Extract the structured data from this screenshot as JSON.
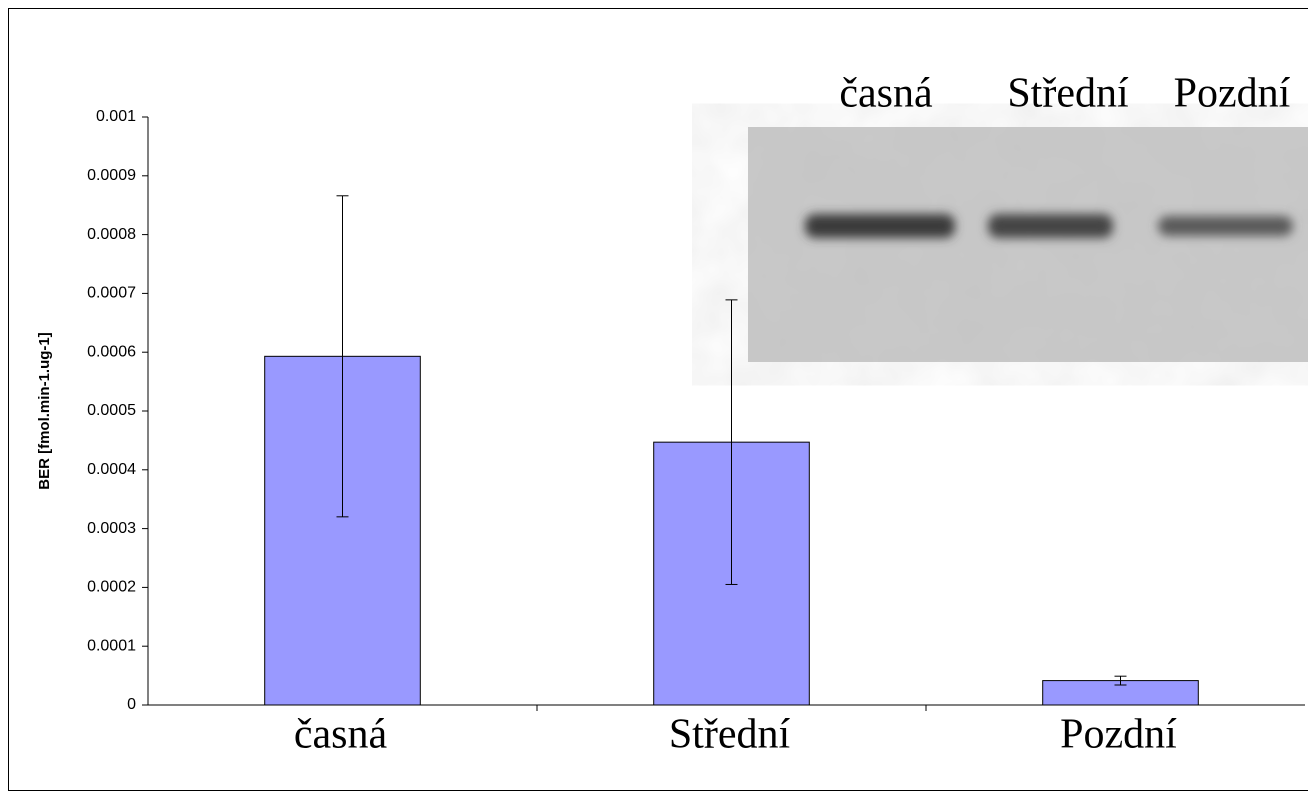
{
  "chart_data": {
    "type": "bar",
    "y_label": "BER [fmol.min-1.ug-1]",
    "categories": [
      "časná",
      "Střední",
      "Pozdní"
    ],
    "values": [
      0.000593,
      0.000447,
      4.15e-05
    ],
    "errors": [
      0.000273,
      0.000242,
      7.5e-06
    ],
    "color": "#9999ff",
    "ylim": [
      0,
      0.001
    ],
    "yticks": [
      0,
      0.0001,
      0.0002,
      0.0003,
      0.0004,
      0.0005,
      0.0006,
      0.0007,
      0.0008,
      0.0009,
      0.001
    ],
    "inset_labels": [
      "časná",
      "Střední",
      "Pozdní"
    ]
  }
}
